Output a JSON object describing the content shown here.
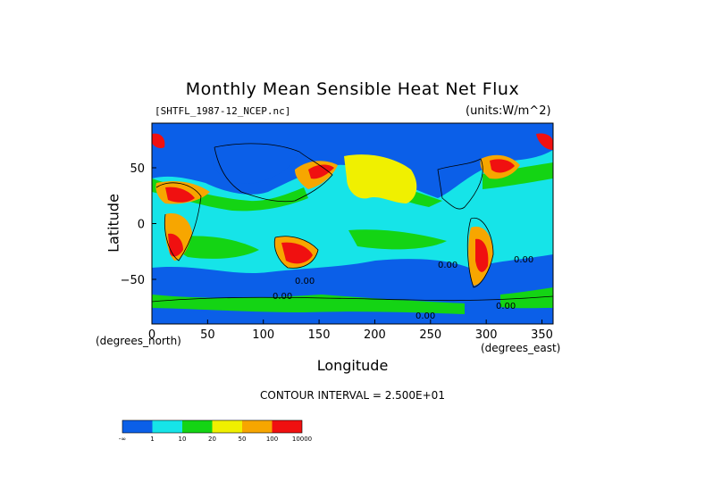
{
  "header": {
    "title": "Monthly Mean Sensible Heat Net Flux",
    "file": "[SHTFL_1987-12_NCEP.nc]",
    "units": "(units:W/m^2)"
  },
  "footer": {
    "contour_interval": "CONTOUR INTERVAL = 2.500E+01"
  },
  "chart_data": {
    "type": "heatmap",
    "title": "Monthly Mean Sensible Heat Net Flux",
    "xlabel": "Longitude",
    "ylabel": "Latitude",
    "x_unit_label": "(degrees_north)",
    "y_unit_label": "(degrees_east)",
    "xlim": [
      0,
      360
    ],
    "ylim": [
      -90,
      90
    ],
    "x_ticks": [
      0,
      50,
      100,
      150,
      200,
      250,
      300,
      350
    ],
    "y_ticks": [
      50,
      0,
      -50
    ],
    "x_tick_labels": [
      "0",
      "50",
      "100",
      "150",
      "200",
      "250",
      "300",
      "350"
    ],
    "y_tick_labels": [
      "50",
      "0",
      "−50"
    ],
    "contour_interval": 25,
    "colorbar": {
      "labels": [
        "-∞",
        "1",
        "10",
        "20",
        "50",
        "100",
        "10000"
      ],
      "colors": [
        "#0b5fe8",
        "#16e4e8",
        "#14d414",
        "#f0f000",
        "#f7a600",
        "#f01010"
      ]
    },
    "contour_labels": [
      "0.00",
      "0.00",
      "0.00",
      "0.00",
      "0.00",
      "0.00"
    ]
  }
}
